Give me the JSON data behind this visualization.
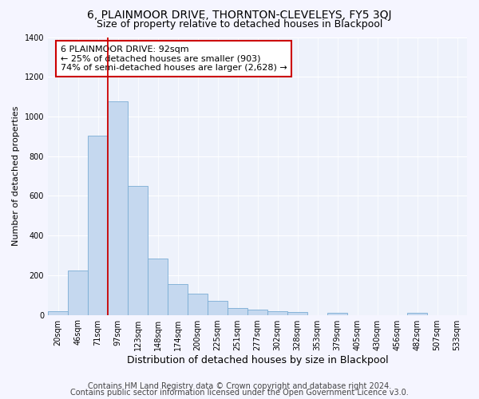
{
  "title": "6, PLAINMOOR DRIVE, THORNTON-CLEVELEYS, FY5 3QJ",
  "subtitle": "Size of property relative to detached houses in Blackpool",
  "xlabel": "Distribution of detached houses by size in Blackpool",
  "ylabel": "Number of detached properties",
  "footer_line1": "Contains HM Land Registry data © Crown copyright and database right 2024.",
  "footer_line2": "Contains public sector information licensed under the Open Government Licence v3.0.",
  "bin_labels": [
    "20sqm",
    "46sqm",
    "71sqm",
    "97sqm",
    "123sqm",
    "148sqm",
    "174sqm",
    "200sqm",
    "225sqm",
    "251sqm",
    "277sqm",
    "302sqm",
    "328sqm",
    "353sqm",
    "379sqm",
    "405sqm",
    "430sqm",
    "456sqm",
    "482sqm",
    "507sqm",
    "533sqm"
  ],
  "bar_heights": [
    20,
    225,
    905,
    1075,
    650,
    285,
    155,
    105,
    70,
    35,
    25,
    20,
    15,
    0,
    10,
    0,
    0,
    0,
    10,
    0,
    0
  ],
  "bar_color": "#c5d8ef",
  "bar_edge_color": "#7aadd4",
  "annotation_line1": "6 PLAINMOOR DRIVE: 92sqm",
  "annotation_line2": "← 25% of detached houses are smaller (903)",
  "annotation_line3": "74% of semi-detached houses are larger (2,628) →",
  "annotation_box_color": "#ffffff",
  "annotation_box_edge_color": "#cc0000",
  "red_line_bin_index": 3,
  "ylim": [
    0,
    1400
  ],
  "yticks": [
    0,
    200,
    400,
    600,
    800,
    1000,
    1200,
    1400
  ],
  "background_color": "#eef2fb",
  "grid_color": "#ffffff",
  "title_fontsize": 10,
  "subtitle_fontsize": 9,
  "annotation_fontsize": 8,
  "ylabel_fontsize": 8,
  "xlabel_fontsize": 9,
  "footer_fontsize": 7,
  "tick_fontsize": 7
}
